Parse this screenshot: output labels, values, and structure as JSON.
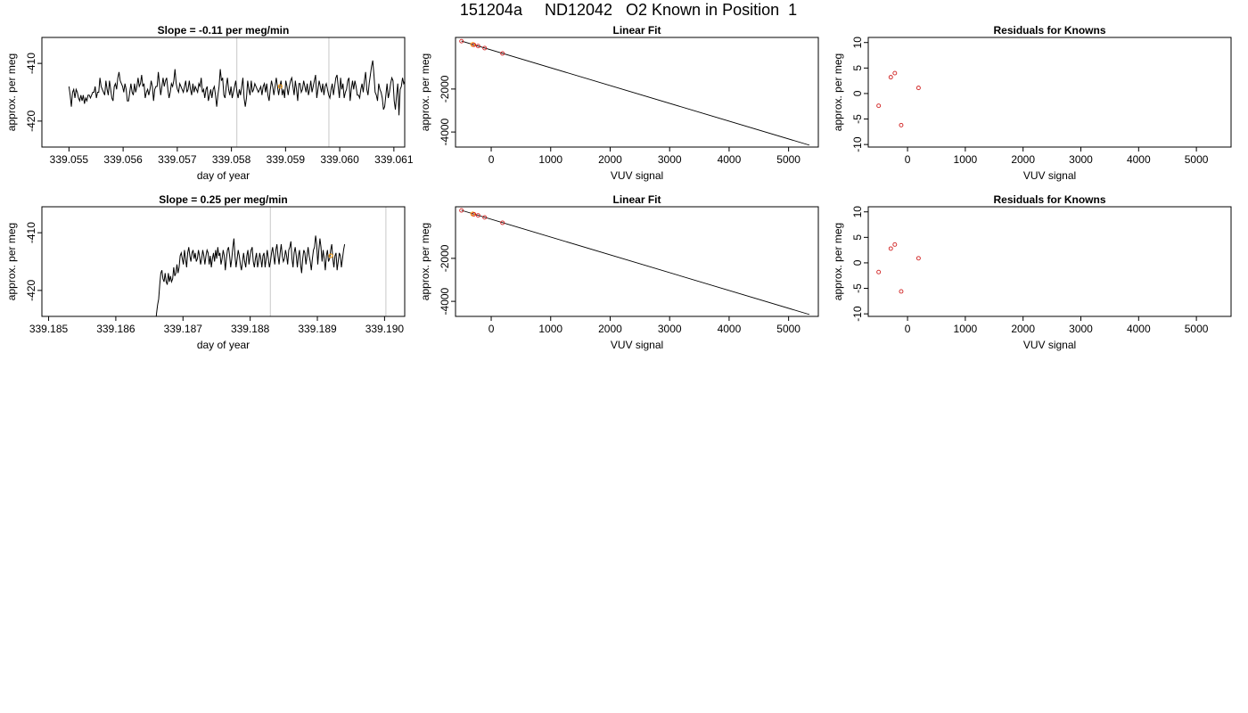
{
  "page": {
    "title": "151204a     ND12042   O2 Known in Position  1"
  },
  "chart_data": [
    {
      "type": "line",
      "title": "Slope =  -0.11  per meg/min",
      "xlabel": "day of year",
      "ylabel": "approx. per meg",
      "xlim": [
        339.0545,
        339.0612
      ],
      "ylim": [
        -424.5,
        -405.5
      ],
      "xticks": [
        339.055,
        339.056,
        339.057,
        339.058,
        339.059,
        339.06,
        339.061
      ],
      "xtick_labels": [
        "339.055",
        "339.056",
        "339.057",
        "339.058",
        "339.059",
        "339.060",
        "339.061"
      ],
      "yticks": [
        -410,
        -420
      ],
      "ytick_labels": [
        "-410",
        "-420"
      ],
      "vlines": [
        339.0581,
        339.0598
      ],
      "highlight_point": [
        339.0589,
        -414.0
      ],
      "series": [
        {
          "x_start": 339.055,
          "x_step": 2.2e-05,
          "values": [
            -414,
            -415.5,
            -417.5,
            -415,
            -414.5,
            -416,
            -414.5,
            -415,
            -416,
            -416.5,
            -415.5,
            -416.5,
            -415.5,
            -417,
            -416,
            -416.5,
            -415.5,
            -415.5,
            -416,
            -415.5,
            -415,
            -415,
            -414,
            -416,
            -415,
            -415,
            -412.5,
            -414,
            -414.5,
            -415,
            -415.5,
            -413,
            -414.5,
            -415.5,
            -413,
            -414.5,
            -416,
            -416.5,
            -414,
            -413.5,
            -414.5,
            -412.5,
            -411.5,
            -413,
            -413.5,
            -414,
            -415,
            -413.5,
            -414.5,
            -416.5,
            -416.5,
            -415,
            -413.5,
            -415,
            -415.5,
            -413.5,
            -415,
            -414,
            -412.5,
            -414,
            -413.5,
            -412,
            -414,
            -413.5,
            -416,
            -415,
            -414.5,
            -415.5,
            -414.5,
            -413,
            -414,
            -416.5,
            -414.5,
            -414,
            -414,
            -411.5,
            -413.5,
            -415.5,
            -414,
            -412.5,
            -414,
            -413,
            -412.5,
            -414.5,
            -416,
            -415,
            -413.5,
            -414,
            -413,
            -411,
            -413.5,
            -414.5,
            -415,
            -413.5,
            -414,
            -414.5,
            -415,
            -414,
            -413,
            -415,
            -414.5,
            -413,
            -414.5,
            -415.5,
            -413.5,
            -415,
            -414,
            -414.5,
            -415,
            -413.5,
            -414,
            -412.5,
            -415,
            -414.5,
            -416,
            -414.5,
            -414,
            -416.5,
            -415.5,
            -414.5,
            -416,
            -414.5,
            -414,
            -415.5,
            -417.5,
            -415.5,
            -414,
            -411,
            -413,
            -412.5,
            -415.5,
            -416,
            -414,
            -412.5,
            -414.5,
            -415.5,
            -414,
            -416,
            -415,
            -414,
            -413,
            -415,
            -416,
            -414.5,
            -415.5,
            -414,
            -412.5,
            -416,
            -417.5,
            -416,
            -413,
            -414.5,
            -415.5,
            -413,
            -415,
            -414.5,
            -413.5,
            -414,
            -414.5,
            -415,
            -414.5,
            -414,
            -415.5,
            -414,
            -413.5,
            -415,
            -413.5,
            -415.5,
            -416.5,
            -414.5,
            -413,
            -414,
            -415.5,
            -414,
            -412.5,
            -414,
            -415.5,
            -414,
            -413,
            -415.5,
            -414.5,
            -416,
            -413,
            -414,
            -415.5,
            -414,
            -413,
            -412.5,
            -414,
            -415.5,
            -413,
            -414.5,
            -416.5,
            -413.5,
            -413.5,
            -415,
            -414.5,
            -413,
            -414,
            -415,
            -413.5,
            -415.5,
            -414.5,
            -413,
            -415,
            -414,
            -413,
            -412,
            -416,
            -414.5,
            -413,
            -414,
            -415,
            -413.5,
            -415.5,
            -414,
            -413.5,
            -414.5,
            -415.5,
            -416,
            -414.5,
            -413.5,
            -415.5,
            -414,
            -412.5,
            -412,
            -414,
            -416,
            -412.5,
            -414.5,
            -413.5,
            -416,
            -415,
            -414.5,
            -413,
            -412.5,
            -416.5,
            -414.5,
            -413,
            -414.5,
            -413,
            -414,
            -415.5,
            -415.5,
            -416,
            -414.5,
            -413.5,
            -415,
            -413,
            -411.5,
            -414.5,
            -415.5,
            -413.5,
            -412,
            -410.5,
            -409.5,
            -412,
            -415,
            -415.5,
            -416.5,
            -413.5,
            -414.5,
            -415,
            -416,
            -418,
            -417.5,
            -415.5,
            -413.5,
            -416,
            -415,
            -413.5,
            -412.5,
            -413,
            -416.5,
            -418,
            -415.5,
            -413.5,
            -419,
            -414.5,
            -414,
            -412.5,
            -413.5,
            -413,
            -416,
            -415,
            -421.5,
            -426
          ]
        }
      ]
    },
    {
      "type": "line",
      "title": "Linear Fit",
      "xlabel": "VUV signal",
      "ylabel": "approx. per meg",
      "xlim": [
        -600,
        5500
      ],
      "ylim": [
        -4700,
        400
      ],
      "xticks": [
        0,
        1000,
        2000,
        3000,
        4000,
        5000
      ],
      "xtick_labels": [
        "0",
        "1000",
        "2000",
        "3000",
        "4000",
        "5000"
      ],
      "yticks": [
        -2000,
        -4000
      ],
      "ytick_labels": [
        "-2000",
        "-4000"
      ],
      "fit_line": [
        [
          -500,
          231
        ],
        [
          5350,
          -4612
        ]
      ],
      "points_known": [
        [
          -500,
          227
        ],
        [
          -290,
          56
        ],
        [
          -220,
          -2
        ],
        [
          -110,
          -97
        ],
        [
          190,
          -345
        ]
      ],
      "points_highlight": [
        [
          -310,
          70
        ]
      ]
    },
    {
      "type": "scatter",
      "title": "Residuals for Knowns",
      "xlabel": "VUV signal",
      "ylabel": "approx. per meg",
      "xlim": [
        -680,
        5600
      ],
      "ylim": [
        -10.5,
        11
      ],
      "xticks": [
        0,
        1000,
        2000,
        3000,
        4000,
        5000
      ],
      "xtick_labels": [
        "0",
        "1000",
        "2000",
        "3000",
        "4000",
        "5000"
      ],
      "yticks": [
        10,
        5,
        0,
        -5,
        -10
      ],
      "ytick_labels": [
        "10",
        "5",
        "0",
        "-5",
        "-10"
      ],
      "points": [
        [
          -500,
          -2.4
        ],
        [
          -290,
          3.2
        ],
        [
          -220,
          4.0
        ],
        [
          -110,
          -6.2
        ],
        [
          190,
          1.1
        ]
      ]
    },
    {
      "type": "line",
      "title": "Slope =  0.25  per meg/min",
      "xlabel": "day of year",
      "ylabel": "approx. per meg",
      "xlim": [
        339.1849,
        339.1903
      ],
      "ylim": [
        -424.5,
        -405.5
      ],
      "xticks": [
        339.185,
        339.186,
        339.187,
        339.188,
        339.189,
        339.19
      ],
      "xtick_labels": [
        "339.185",
        "339.186",
        "339.187",
        "339.188",
        "339.189",
        "339.190"
      ],
      "yticks": [
        -410,
        -420
      ],
      "ytick_labels": [
        "-410",
        "-420"
      ],
      "vlines": [
        339.1883,
        339.19002
      ],
      "highlight_point": [
        339.1892,
        -414.0
      ],
      "series": [
        {
          "x_start": 339.18659,
          "x_step": 1.6e-05,
          "values": [
            -426,
            -424,
            -422.5,
            -421.5,
            -419,
            -417,
            -416.5,
            -418,
            -418.5,
            -417,
            -418.5,
            -419,
            -417,
            -418.5,
            -417.5,
            -418.5,
            -418,
            -416,
            -417.5,
            -417,
            -415.5,
            -417,
            -416,
            -414,
            -413.5,
            -414.5,
            -415.5,
            -413,
            -414.5,
            -416,
            -413.5,
            -412.5,
            -414,
            -415,
            -413.5,
            -413,
            -414.5,
            -413.5,
            -415,
            -414.5,
            -413,
            -414,
            -415.5,
            -414.5,
            -413,
            -414,
            -415.5,
            -414,
            -413,
            -413.5,
            -415.5,
            -414,
            -416,
            -414.5,
            -413.5,
            -415,
            -413,
            -414.5,
            -412.5,
            -414,
            -413.5,
            -415.5,
            -414.5,
            -413,
            -414,
            -416.5,
            -414.5,
            -413,
            -412.5,
            -414,
            -416,
            -414.5,
            -412.5,
            -411,
            -414,
            -416,
            -414.5,
            -413,
            -414,
            -415.5,
            -416.5,
            -415,
            -413.5,
            -415,
            -416,
            -414,
            -413,
            -415.5,
            -414,
            -413,
            -412.5,
            -415,
            -416,
            -414.5,
            -413.5,
            -416,
            -415,
            -413.5,
            -414.5,
            -416,
            -414,
            -413.5,
            -416,
            -414.5,
            -413,
            -414.5,
            -416,
            -415,
            -413.5,
            -412.5,
            -414,
            -415.5,
            -413,
            -412,
            -414,
            -415.5,
            -413.5,
            -412,
            -414,
            -415,
            -414.5,
            -413,
            -414,
            -415.5,
            -413,
            -412.5,
            -411.5,
            -414.5,
            -416,
            -413.5,
            -412.5,
            -414,
            -416,
            -414,
            -413,
            -415.5,
            -417,
            -414.5,
            -413,
            -413.5,
            -415.5,
            -414,
            -412.5,
            -414,
            -415,
            -416.5,
            -414.5,
            -413,
            -412.5,
            -410.5,
            -412,
            -415.5,
            -413,
            -411,
            -412.5,
            -415,
            -413,
            -414.5,
            -416.5,
            -414,
            -413,
            -415,
            -414.5,
            -413,
            -412,
            -414.5,
            -416,
            -414,
            -413.5,
            -416.5,
            -415,
            -413.5,
            -414,
            -416,
            -414.5,
            -413,
            -412
          ]
        }
      ]
    },
    {
      "type": "line",
      "title": "Linear Fit",
      "xlabel": "VUV signal",
      "ylabel": "approx. per meg",
      "xlim": [
        -600,
        5500
      ],
      "ylim": [
        -4700,
        400
      ],
      "xticks": [
        0,
        1000,
        2000,
        3000,
        4000,
        5000
      ],
      "xtick_labels": [
        "0",
        "1000",
        "2000",
        "3000",
        "4000",
        "5000"
      ],
      "yticks": [
        -2000,
        -4000
      ],
      "ytick_labels": [
        "-2000",
        "-4000"
      ],
      "fit_line": [
        [
          -500,
          234
        ],
        [
          5350,
          -4612
        ]
      ],
      "points_known": [
        [
          -500,
          230
        ],
        [
          -290,
          52
        ],
        [
          -220,
          0
        ],
        [
          -110,
          -95
        ],
        [
          190,
          -345
        ]
      ],
      "points_highlight": [
        [
          -310,
          66
        ]
      ]
    },
    {
      "type": "scatter",
      "title": "Residuals for Knowns",
      "xlabel": "VUV signal",
      "ylabel": "approx. per meg",
      "xlim": [
        -680,
        5600
      ],
      "ylim": [
        -10.5,
        11
      ],
      "xticks": [
        0,
        1000,
        2000,
        3000,
        4000,
        5000
      ],
      "xtick_labels": [
        "0",
        "1000",
        "2000",
        "3000",
        "4000",
        "5000"
      ],
      "yticks": [
        10,
        5,
        0,
        -5,
        -10
      ],
      "ytick_labels": [
        "10",
        "5",
        "0",
        "-5",
        "-10"
      ],
      "points": [
        [
          -500,
          -1.8
        ],
        [
          -290,
          2.8
        ],
        [
          -220,
          3.6
        ],
        [
          -110,
          -5.6
        ],
        [
          190,
          0.9
        ]
      ]
    }
  ]
}
